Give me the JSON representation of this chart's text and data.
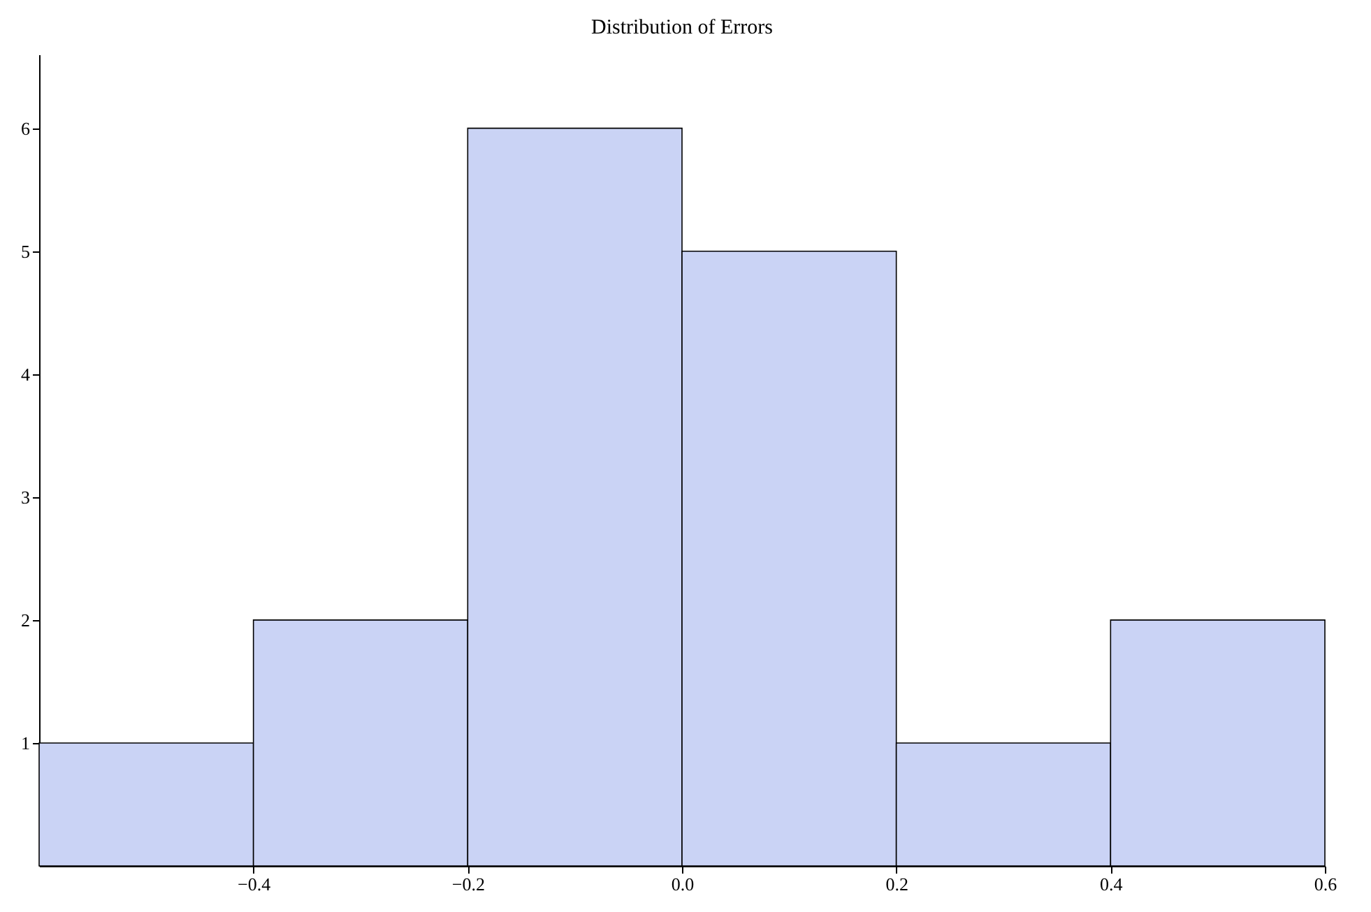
{
  "chart_data": {
    "type": "histogram",
    "title": "Distribution of Errors",
    "bins": [
      -0.6,
      -0.4,
      -0.2,
      0.0,
      0.2,
      0.4,
      0.6
    ],
    "values": [
      1,
      2,
      6,
      5,
      1,
      2
    ],
    "color": "#cad3f5",
    "xlim": [
      -0.6,
      0.6
    ],
    "ylim": [
      0,
      6.6
    ],
    "xticks": [
      {
        "value": -0.4,
        "label": "−0.4"
      },
      {
        "value": -0.2,
        "label": "−0.2"
      },
      {
        "value": 0,
        "label": "0.0"
      },
      0.2,
      0.4,
      0.6
    ],
    "yticks": [
      1,
      2,
      3,
      4,
      5,
      6
    ],
    "grid": false
  }
}
